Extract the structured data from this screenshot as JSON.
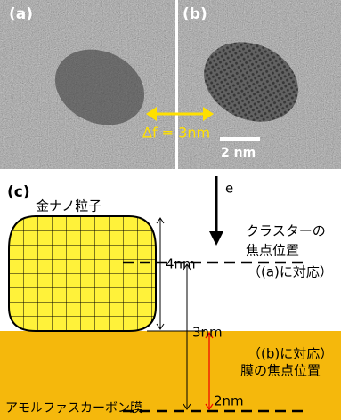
{
  "panel_a": {
    "label": "(a)"
  },
  "panel_b": {
    "label": "(b)",
    "defocus": "Δf = 3nm",
    "scale_bar": "2 nm"
  },
  "panel_c": {
    "label": "(c)",
    "beam": "e",
    "particle": "金ナノ粒子",
    "height": "4nm",
    "cluster_focus": [
      "クラスターの",
      "焦点位置",
      "（(a)に対応）"
    ],
    "offset": "3nm",
    "film_focus": [
      "（(b)に対応）",
      "膜の焦点位置"
    ],
    "film": "アモルファスカーボン膜",
    "film_depth": "2nm"
  }
}
